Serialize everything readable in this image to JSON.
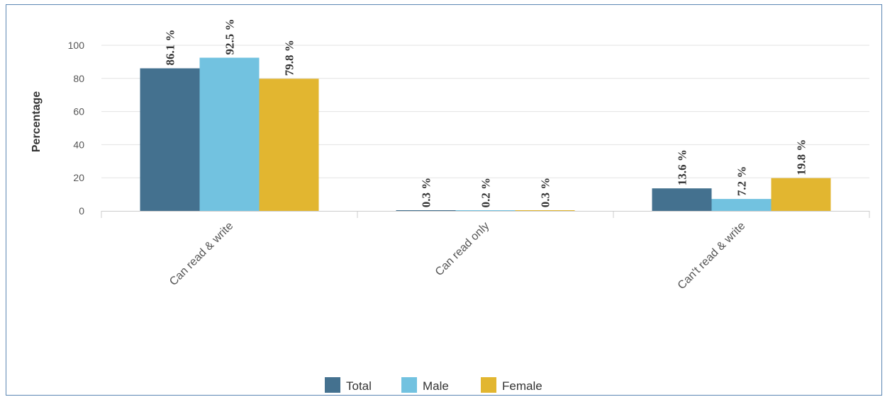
{
  "chart_data": {
    "type": "bar",
    "ylabel": "Percentage",
    "xlabel": "",
    "ylim": [
      0,
      100
    ],
    "yticks": [
      0,
      20,
      40,
      60,
      80,
      100
    ],
    "grid": true,
    "legend_position": "bottom",
    "categories": [
      "Can read & write",
      "Can read only",
      "Can't read & write"
    ],
    "series": [
      {
        "name": "Total",
        "color": "#44718f",
        "values": [
          86.1,
          0.3,
          13.6
        ],
        "labels": [
          "86.1 %",
          "0.3 %",
          "13.6 %"
        ]
      },
      {
        "name": "Male",
        "color": "#72c2e0",
        "values": [
          92.5,
          0.2,
          7.2
        ],
        "labels": [
          "92.5 %",
          "0.2 %",
          "7.2 %"
        ]
      },
      {
        "name": "Female",
        "color": "#e2b630",
        "values": [
          79.8,
          0.3,
          19.8
        ],
        "labels": [
          "79.8 %",
          "0.3 %",
          "19.8 %"
        ]
      }
    ]
  }
}
